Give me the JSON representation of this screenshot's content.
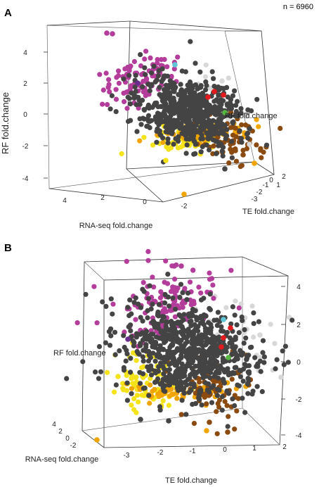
{
  "figure": {
    "n_label": "n = 6960",
    "panel_a_letter": "A",
    "panel_b_letter": "B"
  },
  "colors": {
    "dark_gray": "#444444",
    "light_gray": "#d8d8d8",
    "magenta": "#b43c9a",
    "yellow": "#f5e31a",
    "orange": "#f0a500",
    "brown": "#8b4a10",
    "red": "#e41a1c",
    "cyan": "#5fc6d8",
    "green": "#56b840",
    "purple": "#6a2c8e"
  },
  "chart_data": [
    {
      "type": "scatter",
      "panel": "A",
      "xlabel": "RNA-seq fold.change",
      "ylabel": "TE fold.change",
      "zlabel": "RF fold.change",
      "x_ticks": [
        "4",
        "2",
        "0",
        "-2"
      ],
      "y_ticks": [
        "-3",
        "-2",
        "-1",
        "0",
        "1",
        "2"
      ],
      "z_ticks": [
        "4",
        "2",
        "0",
        "-2",
        "-4"
      ],
      "grid": false,
      "n_points": 6960,
      "series": [
        {
          "color_key": "dark_gray",
          "points": [
            [
              0.5,
              -0.5,
              0.4
            ],
            [
              0,
              0,
              0
            ],
            [
              -0.5,
              0.5,
              -0.4
            ],
            [
              0.3,
              0.2,
              0.6
            ],
            [
              -0.3,
              -0.2,
              -0.5
            ]
          ]
        },
        {
          "color_key": "magenta",
          "points": [
            [
              3,
              -1.5,
              3.5
            ],
            [
              2.5,
              -2,
              3
            ],
            [
              2,
              -1,
              2.5
            ],
            [
              1.5,
              -1.5,
              2
            ],
            [
              3.5,
              -2,
              4.5
            ]
          ]
        },
        {
          "color_key": "yellow",
          "points": [
            [
              -1,
              -1,
              -1.5
            ],
            [
              -1.5,
              -1,
              -1.8
            ],
            [
              -0.5,
              -1.5,
              -1.2
            ],
            [
              -2,
              -0.5,
              -2
            ]
          ]
        },
        {
          "color_key": "orange",
          "points": [
            [
              -2.5,
              0,
              -1.5
            ],
            [
              -1,
              0.5,
              -1.2
            ],
            [
              -3.5,
              1.5,
              -4
            ]
          ]
        },
        {
          "color_key": "brown",
          "points": [
            [
              -2,
              1,
              -1
            ],
            [
              -2.5,
              1.5,
              -1.5
            ],
            [
              -1.5,
              1.5,
              -1.2
            ],
            [
              -3,
              1.8,
              -2.5
            ]
          ]
        },
        {
          "color_key": "light_gray",
          "points": [
            [
              0,
              1.5,
              1
            ],
            [
              -1,
              1.2,
              0.8
            ],
            [
              1,
              -2.5,
              -0.5
            ]
          ]
        },
        {
          "color_key": "red",
          "points": [
            [
              0.5,
              1.2,
              2
            ],
            [
              0,
              1.5,
              1.8
            ]
          ]
        },
        {
          "color_key": "cyan",
          "points": [
            [
              2,
              0,
              3.5
            ]
          ]
        },
        {
          "color_key": "green",
          "points": [
            [
              -0.3,
              1.8,
              0.5
            ]
          ]
        },
        {
          "color_key": "purple",
          "points": [
            [
              2.5,
              -2.5,
              1
            ]
          ]
        }
      ]
    },
    {
      "type": "scatter",
      "panel": "B",
      "xlabel": "TE fold.change",
      "ylabel": "RNA-seq fold.change",
      "zlabel": "RF fold.change",
      "x_ticks": [
        "-3",
        "-2",
        "-1",
        "0",
        "1",
        "2"
      ],
      "y_ticks": [
        "4",
        "2",
        "0",
        "-2"
      ],
      "z_ticks": [
        "4",
        "2",
        "0",
        "-2",
        "-4"
      ],
      "grid": false,
      "n_points": 6960,
      "series": [
        {
          "color_key": "dark_gray",
          "points": [
            [
              0,
              0,
              0
            ],
            [
              -0.5,
              0.5,
              0.5
            ],
            [
              0.5,
              -0.5,
              -0.5
            ]
          ]
        },
        {
          "color_key": "magenta",
          "points": [
            [
              -1,
              2,
              3
            ],
            [
              -1.5,
              2.5,
              3.5
            ],
            [
              -0.5,
              1.5,
              2.5
            ]
          ]
        },
        {
          "color_key": "yellow",
          "points": [
            [
              -2,
              -1,
              -1.5
            ],
            [
              -2.5,
              -0.5,
              -2
            ]
          ]
        },
        {
          "color_key": "orange",
          "points": [
            [
              -1,
              -1,
              -1.2
            ],
            [
              -3,
              4,
              -4
            ]
          ]
        },
        {
          "color_key": "brown",
          "points": [
            [
              1,
              -1.5,
              -1.5
            ],
            [
              1.5,
              -2,
              -2
            ]
          ]
        },
        {
          "color_key": "light_gray",
          "points": [
            [
              1.5,
              0.5,
              1
            ],
            [
              2,
              0,
              0.5
            ]
          ]
        },
        {
          "color_key": "red",
          "points": [
            [
              0.8,
              1,
              2
            ],
            [
              1,
              1.2,
              1.8
            ]
          ]
        },
        {
          "color_key": "cyan",
          "points": [
            [
              0.2,
              2,
              3.2
            ]
          ]
        },
        {
          "color_key": "green",
          "points": [
            [
              1,
              0.5,
              0.8
            ]
          ]
        },
        {
          "color_key": "purple",
          "points": [
            [
              -2.8,
              2,
              1
            ]
          ]
        }
      ]
    }
  ]
}
